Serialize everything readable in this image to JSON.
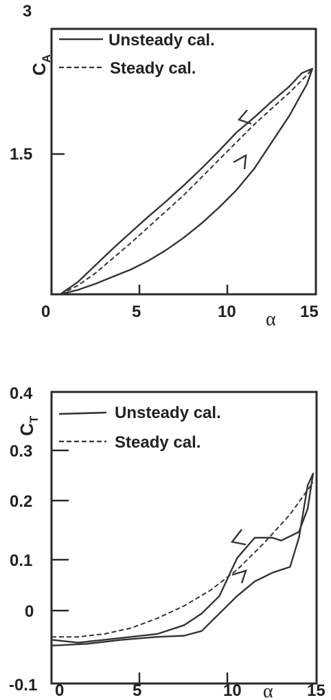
{
  "chart_data": [
    {
      "type": "line",
      "ylabel_main": "C",
      "ylabel_sub": "A",
      "xlabel": "α",
      "xlim": [
        0,
        15
      ],
      "ylim": [
        0,
        3
      ],
      "x_ticks": [
        "0",
        "5",
        "10",
        "15"
      ],
      "y_ticks": [
        "1.5",
        "3"
      ],
      "legend_position": "top-left",
      "series": [
        {
          "name": "Unsteady cal.",
          "style": "solid",
          "x": [
            0.5,
            1.5,
            2.5,
            3.5,
            4.5,
            5.5,
            6.5,
            7.5,
            8.5,
            9.5,
            10.5,
            11.5,
            12.5,
            13.5,
            14.5,
            14.8,
            14.2,
            13.5,
            12.5,
            11.5,
            10.5,
            9.5,
            8.5,
            7.5,
            6.5,
            5.5,
            4.5,
            3.5,
            2.5,
            1.5,
            0.5
          ],
          "y": [
            0.0,
            0.05,
            0.12,
            0.2,
            0.28,
            0.38,
            0.5,
            0.64,
            0.8,
            0.98,
            1.18,
            1.42,
            1.72,
            2.02,
            2.38,
            2.55,
            2.5,
            2.35,
            2.18,
            2.0,
            1.83,
            1.62,
            1.42,
            1.23,
            1.05,
            0.88,
            0.7,
            0.52,
            0.33,
            0.14,
            0.0
          ]
        },
        {
          "name": "Steady cal.",
          "style": "dashed",
          "x": [
            0.5,
            1.5,
            2.5,
            3.5,
            4.5,
            5.5,
            6.5,
            7.5,
            8.5,
            9.5,
            10.5,
            11.5,
            12.5,
            13.5,
            14.5,
            14.8
          ],
          "y": [
            0.0,
            0.1,
            0.24,
            0.41,
            0.58,
            0.76,
            0.94,
            1.12,
            1.32,
            1.52,
            1.72,
            1.92,
            2.1,
            2.28,
            2.48,
            2.55
          ]
        }
      ]
    },
    {
      "type": "line",
      "ylabel_main": "C",
      "ylabel_sub": "T",
      "xlabel": "α",
      "xlim": [
        0,
        15
      ],
      "ylim": [
        -0.1,
        0.4
      ],
      "x_ticks": [
        "0",
        "5",
        "10",
        "15"
      ],
      "y_ticks": [
        "-0.1",
        "0",
        "0.1",
        "0.2",
        "0.3",
        "0.4"
      ],
      "legend_position": "top-left",
      "series": [
        {
          "name": "Unsteady cal.",
          "style": "solid",
          "x": [
            0.0,
            2.0,
            4.0,
            6.0,
            7.5,
            8.5,
            9.5,
            10.5,
            11.5,
            12.5,
            13.5,
            14.0,
            14.5,
            14.8,
            14.5,
            14.0,
            13.0,
            12.5,
            11.5,
            10.5,
            9.5,
            8.5,
            7.5,
            6.0,
            4.5,
            3.0,
            1.5,
            0.0
          ],
          "y": [
            -0.035,
            -0.032,
            -0.025,
            -0.02,
            -0.018,
            -0.01,
            0.02,
            0.05,
            0.075,
            0.09,
            0.1,
            0.15,
            0.24,
            0.26,
            0.2,
            0.16,
            0.145,
            0.15,
            0.15,
            0.115,
            0.05,
            0.02,
            0.0,
            -0.015,
            -0.02,
            -0.025,
            -0.03,
            -0.025
          ]
        },
        {
          "name": "Steady cal.",
          "style": "dashed",
          "x": [
            0.0,
            1.5,
            3.0,
            4.5,
            6.0,
            7.5,
            9.0,
            10.5,
            12.0,
            13.5,
            14.8
          ],
          "y": [
            -0.02,
            -0.02,
            -0.015,
            -0.005,
            0.012,
            0.033,
            0.06,
            0.095,
            0.14,
            0.19,
            0.245
          ]
        }
      ]
    }
  ]
}
